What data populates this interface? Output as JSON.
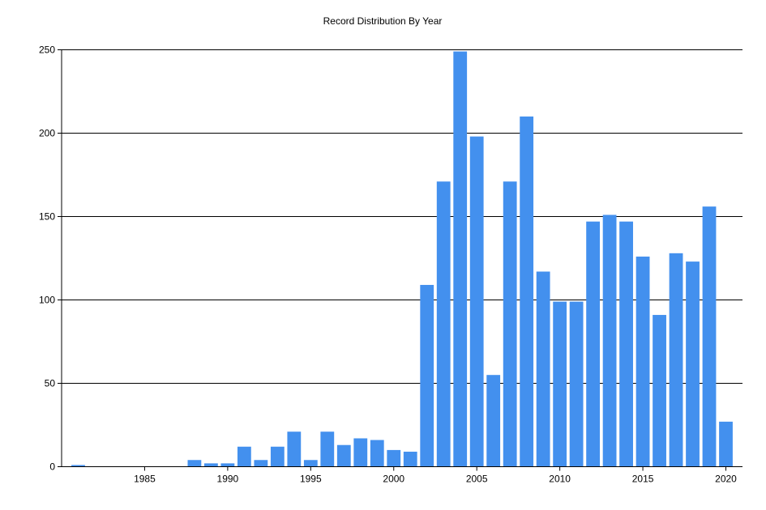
{
  "chart_data": {
    "type": "bar",
    "title": "Record Distribution By Year",
    "xlabel": "",
    "ylabel": "",
    "x": [
      1981,
      1988,
      1989,
      1990,
      1991,
      1992,
      1993,
      1994,
      1995,
      1996,
      1997,
      1998,
      1999,
      2000,
      2001,
      2002,
      2003,
      2004,
      2005,
      2006,
      2007,
      2008,
      2009,
      2010,
      2011,
      2012,
      2013,
      2014,
      2015,
      2016,
      2017,
      2018,
      2019,
      2020
    ],
    "values": [
      1,
      4,
      2,
      2,
      12,
      4,
      12,
      21,
      4,
      21,
      13,
      17,
      16,
      10,
      9,
      109,
      171,
      249,
      198,
      55,
      171,
      210,
      117,
      99,
      99,
      147,
      151,
      147,
      126,
      91,
      128,
      123,
      156,
      27
    ],
    "xlim": [
      1980,
      2021
    ],
    "ylim": [
      0,
      250
    ],
    "x_ticks": [
      "1985",
      "1990",
      "1995",
      "2000",
      "2005",
      "2010",
      "2015",
      "2020"
    ],
    "y_ticks": [
      "0",
      "50",
      "100",
      "150",
      "200",
      "250"
    ],
    "grid": "horizontal",
    "legend": "none",
    "colors": {
      "bar": "#4390ee",
      "grid": "#000000",
      "axis": "#000000",
      "text": "#000000"
    }
  }
}
